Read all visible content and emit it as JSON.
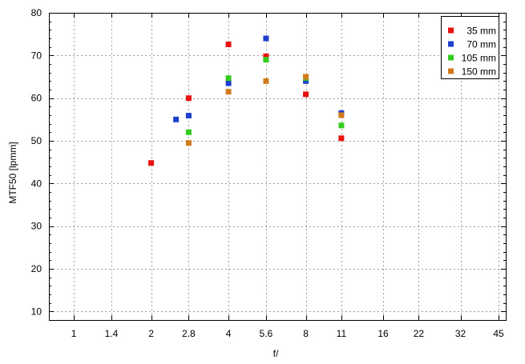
{
  "chart_data": {
    "type": "scatter",
    "xlabel": "f/",
    "ylabel": "MTF50 [lpmm]",
    "x_scale": "log2",
    "xlim": [
      0.8,
      48
    ],
    "ylim": [
      8,
      80
    ],
    "x_ticks": [
      {
        "value": 1,
        "label": "1"
      },
      {
        "value": 1.4,
        "label": "1.4"
      },
      {
        "value": 2,
        "label": "2"
      },
      {
        "value": 2.8,
        "label": "2.8"
      },
      {
        "value": 4,
        "label": "4"
      },
      {
        "value": 5.6,
        "label": "5.6"
      },
      {
        "value": 8,
        "label": "8"
      },
      {
        "value": 11,
        "label": "11"
      },
      {
        "value": 16,
        "label": "16"
      },
      {
        "value": 22,
        "label": "22"
      },
      {
        "value": 32,
        "label": "32"
      },
      {
        "value": 45,
        "label": "45"
      }
    ],
    "y_ticks": [
      10,
      20,
      30,
      40,
      50,
      60,
      70,
      80
    ],
    "grid": true,
    "legend_position": "top-right",
    "series": [
      {
        "name": "35 mm",
        "color": "#e8120e",
        "points": [
          {
            "x": 2,
            "y": 44.8
          },
          {
            "x": 2.8,
            "y": 60.0
          },
          {
            "x": 4,
            "y": 72.6
          },
          {
            "x": 5.6,
            "y": 69.8
          },
          {
            "x": 8,
            "y": 60.9
          },
          {
            "x": 11,
            "y": 50.6
          }
        ]
      },
      {
        "name": "70 mm",
        "color": "#1f3fd0",
        "points": [
          {
            "x": 2.5,
            "y": 55.0
          },
          {
            "x": 2.8,
            "y": 55.9
          },
          {
            "x": 4,
            "y": 63.5
          },
          {
            "x": 5.6,
            "y": 74.0
          },
          {
            "x": 8,
            "y": 64.0
          },
          {
            "x": 11,
            "y": 56.5
          }
        ]
      },
      {
        "name": "105 mm",
        "color": "#33cc1e",
        "points": [
          {
            "x": 2.8,
            "y": 52.0
          },
          {
            "x": 4,
            "y": 64.7
          },
          {
            "x": 5.6,
            "y": 69.0
          },
          {
            "x": 8,
            "y": 64.7
          },
          {
            "x": 11,
            "y": 53.6
          }
        ]
      },
      {
        "name": "150 mm",
        "color": "#d07a1c",
        "points": [
          {
            "x": 2.8,
            "y": 49.5
          },
          {
            "x": 4,
            "y": 61.5
          },
          {
            "x": 5.6,
            "y": 64.0
          },
          {
            "x": 8,
            "y": 65.0
          },
          {
            "x": 11,
            "y": 56.0
          }
        ]
      }
    ]
  }
}
